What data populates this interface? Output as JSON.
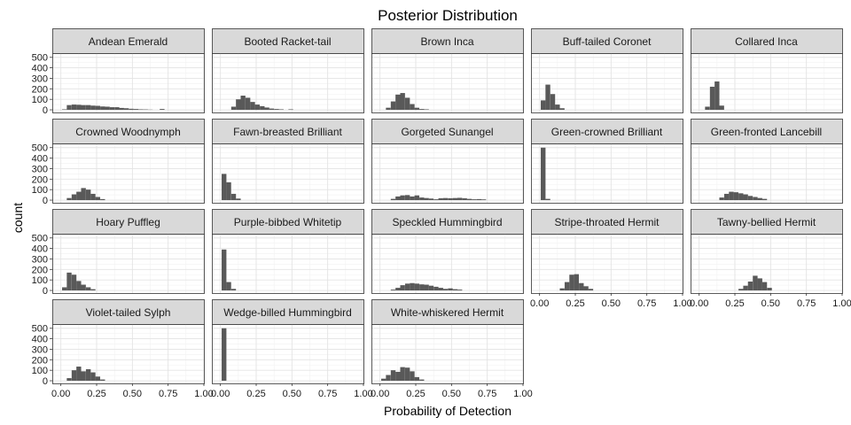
{
  "chart_data": {
    "type": "histogram-facets",
    "title": "Posterior Distribution",
    "xlabel": "Probability of Detection",
    "ylabel": "count",
    "xlim": [
      -0.06,
      1.0
    ],
    "ylim": [
      -25,
      540
    ],
    "x_ticks": [
      0.0,
      0.25,
      0.5,
      0.75,
      1.0
    ],
    "x_tick_labels": [
      "0.00",
      "0.25",
      "0.50",
      "0.75",
      "1.00"
    ],
    "y_ticks": [
      0,
      100,
      200,
      300,
      400,
      500
    ],
    "y_tick_labels": [
      "0",
      "100",
      "200",
      "300",
      "400",
      "500"
    ],
    "bin_width": 0.0333,
    "bar_color": "#595959",
    "strip_color": "#d9d9d9",
    "grid": true,
    "panels": [
      {
        "name": "Andean Emerald",
        "bins": [
          [
            0.025,
            5
          ],
          [
            0.058,
            45
          ],
          [
            0.092,
            50
          ],
          [
            0.125,
            48
          ],
          [
            0.158,
            45
          ],
          [
            0.192,
            45
          ],
          [
            0.225,
            40
          ],
          [
            0.258,
            38
          ],
          [
            0.292,
            32
          ],
          [
            0.325,
            30
          ],
          [
            0.358,
            25
          ],
          [
            0.392,
            25
          ],
          [
            0.425,
            18
          ],
          [
            0.458,
            15
          ],
          [
            0.492,
            10
          ],
          [
            0.525,
            8
          ],
          [
            0.558,
            5
          ],
          [
            0.592,
            4
          ],
          [
            0.625,
            2
          ],
          [
            0.708,
            8
          ]
        ]
      },
      {
        "name": "Booted Racket-tail",
        "bins": [
          [
            0.092,
            30
          ],
          [
            0.125,
            100
          ],
          [
            0.158,
            135
          ],
          [
            0.192,
            115
          ],
          [
            0.225,
            75
          ],
          [
            0.258,
            50
          ],
          [
            0.292,
            35
          ],
          [
            0.325,
            22
          ],
          [
            0.358,
            12
          ],
          [
            0.392,
            8
          ],
          [
            0.425,
            5
          ],
          [
            0.492,
            5
          ]
        ]
      },
      {
        "name": "Brown Inca",
        "bins": [
          [
            0.058,
            20
          ],
          [
            0.092,
            80
          ],
          [
            0.125,
            145
          ],
          [
            0.158,
            160
          ],
          [
            0.192,
            115
          ],
          [
            0.225,
            55
          ],
          [
            0.258,
            20
          ],
          [
            0.292,
            8
          ],
          [
            0.325,
            5
          ]
        ]
      },
      {
        "name": "Buff-tailed Coronet",
        "bins": [
          [
            0.025,
            90
          ],
          [
            0.058,
            240
          ],
          [
            0.092,
            150
          ],
          [
            0.125,
            50
          ],
          [
            0.158,
            15
          ]
        ]
      },
      {
        "name": "Collared Inca",
        "bins": [
          [
            0.058,
            30
          ],
          [
            0.092,
            220
          ],
          [
            0.125,
            270
          ],
          [
            0.158,
            40
          ]
        ]
      },
      {
        "name": "Crowned Woodnymph",
        "bins": [
          [
            0.058,
            20
          ],
          [
            0.092,
            55
          ],
          [
            0.125,
            80
          ],
          [
            0.158,
            115
          ],
          [
            0.192,
            100
          ],
          [
            0.225,
            60
          ],
          [
            0.258,
            30
          ],
          [
            0.292,
            10
          ]
        ]
      },
      {
        "name": "Fawn-breasted Brilliant",
        "bins": [
          [
            0.025,
            250
          ],
          [
            0.058,
            170
          ],
          [
            0.092,
            60
          ],
          [
            0.125,
            15
          ]
        ]
      },
      {
        "name": "Gorgeted Sunangel",
        "bins": [
          [
            0.092,
            12
          ],
          [
            0.125,
            35
          ],
          [
            0.158,
            45
          ],
          [
            0.192,
            48
          ],
          [
            0.225,
            35
          ],
          [
            0.258,
            45
          ],
          [
            0.292,
            25
          ],
          [
            0.325,
            20
          ],
          [
            0.358,
            15
          ],
          [
            0.392,
            8
          ],
          [
            0.425,
            18
          ],
          [
            0.458,
            20
          ],
          [
            0.492,
            18
          ],
          [
            0.525,
            20
          ],
          [
            0.558,
            22
          ],
          [
            0.592,
            18
          ],
          [
            0.625,
            12
          ],
          [
            0.658,
            8
          ],
          [
            0.692,
            10
          ],
          [
            0.725,
            7
          ]
        ]
      },
      {
        "name": "Green-crowned Brilliant",
        "bins": [
          [
            0.025,
            500
          ],
          [
            0.058,
            12
          ]
        ]
      },
      {
        "name": "Green-fronted Lancebill",
        "bins": [
          [
            0.158,
            25
          ],
          [
            0.192,
            60
          ],
          [
            0.225,
            80
          ],
          [
            0.258,
            75
          ],
          [
            0.292,
            65
          ],
          [
            0.325,
            55
          ],
          [
            0.358,
            40
          ],
          [
            0.392,
            30
          ],
          [
            0.425,
            20
          ],
          [
            0.458,
            12
          ]
        ]
      },
      {
        "name": "Hoary Puffleg",
        "bins": [
          [
            0.025,
            30
          ],
          [
            0.058,
            170
          ],
          [
            0.092,
            150
          ],
          [
            0.125,
            90
          ],
          [
            0.158,
            55
          ],
          [
            0.192,
            30
          ],
          [
            0.225,
            12
          ]
        ]
      },
      {
        "name": "Purple-bibbed Whitetip",
        "bins": [
          [
            0.025,
            390
          ],
          [
            0.058,
            80
          ],
          [
            0.092,
            15
          ]
        ]
      },
      {
        "name": "Speckled Hummingbird",
        "bins": [
          [
            0.092,
            8
          ],
          [
            0.125,
            25
          ],
          [
            0.158,
            50
          ],
          [
            0.192,
            65
          ],
          [
            0.225,
            70
          ],
          [
            0.258,
            65
          ],
          [
            0.292,
            58
          ],
          [
            0.325,
            55
          ],
          [
            0.358,
            45
          ],
          [
            0.392,
            35
          ],
          [
            0.425,
            25
          ],
          [
            0.458,
            15
          ],
          [
            0.492,
            20
          ],
          [
            0.525,
            12
          ],
          [
            0.558,
            8
          ]
        ]
      },
      {
        "name": "Stripe-throated Hermit",
        "bins": [
          [
            0.158,
            20
          ],
          [
            0.192,
            80
          ],
          [
            0.225,
            150
          ],
          [
            0.258,
            155
          ],
          [
            0.292,
            70
          ],
          [
            0.325,
            40
          ],
          [
            0.358,
            15
          ]
        ]
      },
      {
        "name": "Tawny-bellied Hermit",
        "bins": [
          [
            0.292,
            15
          ],
          [
            0.325,
            45
          ],
          [
            0.358,
            85
          ],
          [
            0.392,
            140
          ],
          [
            0.425,
            115
          ],
          [
            0.458,
            80
          ],
          [
            0.492,
            25
          ]
        ]
      },
      {
        "name": "Violet-tailed Sylph",
        "bins": [
          [
            0.058,
            25
          ],
          [
            0.092,
            100
          ],
          [
            0.125,
            135
          ],
          [
            0.158,
            90
          ],
          [
            0.192,
            110
          ],
          [
            0.225,
            80
          ],
          [
            0.258,
            40
          ],
          [
            0.292,
            12
          ]
        ]
      },
      {
        "name": "Wedge-billed Hummingbird",
        "bins": [
          [
            0.025,
            500
          ]
        ]
      },
      {
        "name": "White-whiskered Hermit",
        "bins": [
          [
            0.025,
            20
          ],
          [
            0.058,
            55
          ],
          [
            0.092,
            100
          ],
          [
            0.125,
            85
          ],
          [
            0.158,
            130
          ],
          [
            0.192,
            125
          ],
          [
            0.225,
            90
          ],
          [
            0.258,
            35
          ],
          [
            0.292,
            12
          ]
        ]
      }
    ]
  }
}
